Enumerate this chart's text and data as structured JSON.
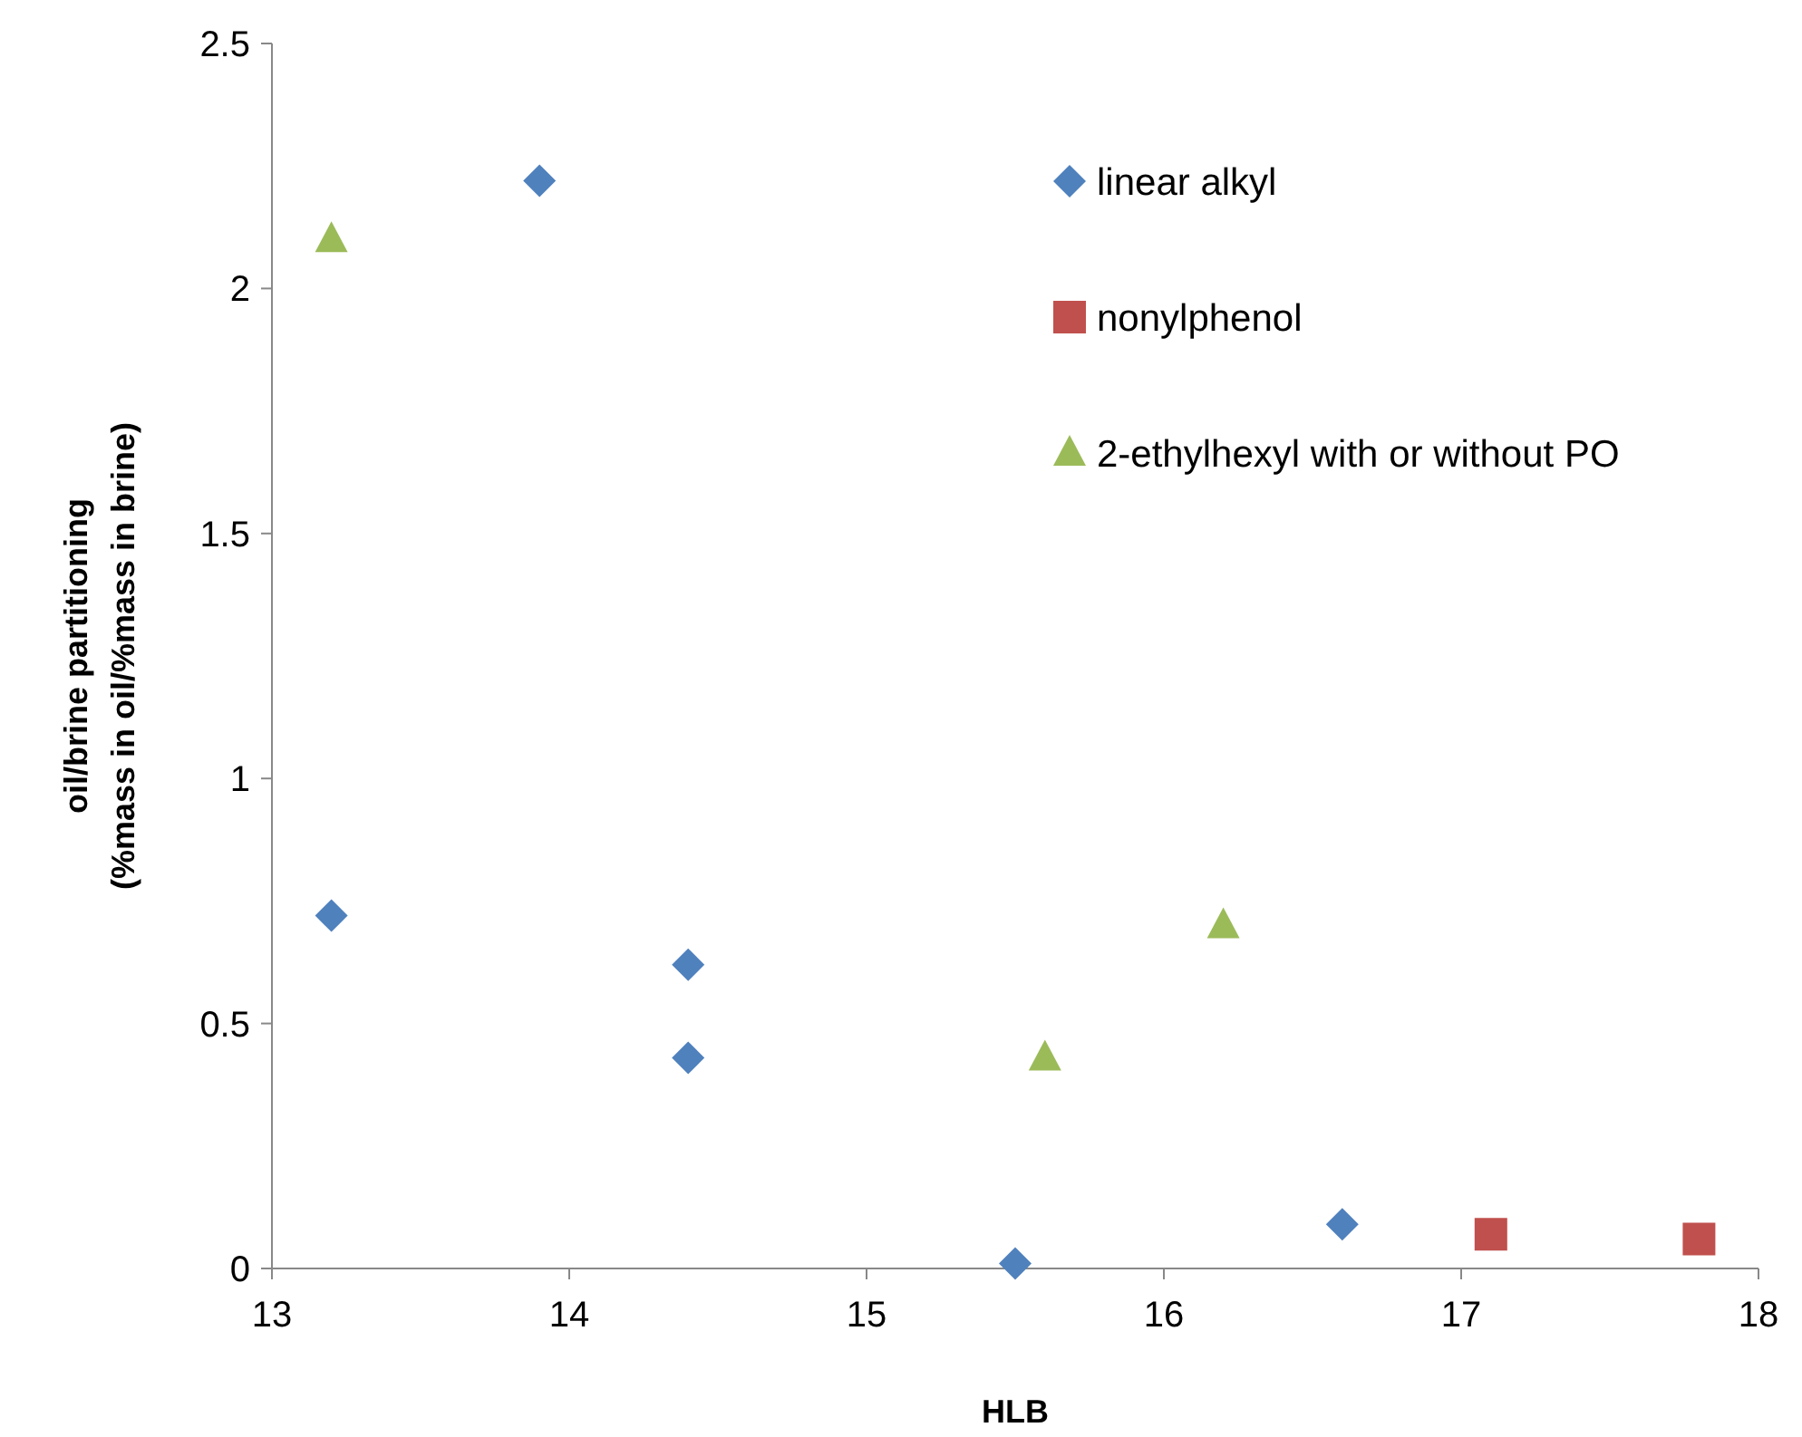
{
  "chart_data": {
    "type": "scatter",
    "xlabel": "HLB",
    "ylabel": "oil/brine partitioning\n(%mass in oil/%mass in brine)",
    "xlim": [
      13,
      18
    ],
    "xticks": [
      13,
      14,
      15,
      16,
      17,
      18
    ],
    "ylim": [
      0,
      2.5
    ],
    "yticks": [
      0,
      0.5,
      1,
      1.5,
      2,
      2.5
    ],
    "grid": false,
    "legend": "top right",
    "series": [
      {
        "name": "linear alkyl",
        "color": "#4f81bd",
        "marker": "diamond",
        "x": [
          13.2,
          13.9,
          14.4,
          14.4,
          15.5,
          16.6
        ],
        "values": [
          0.72,
          2.22,
          0.62,
          0.43,
          0.01,
          0.09
        ]
      },
      {
        "name": "nonylphenol",
        "color": "#c0504d",
        "marker": "square",
        "x": [
          17.1,
          17.8
        ],
        "values": [
          0.07,
          0.06
        ]
      },
      {
        "name": "2-ethylhexyl with or without PO",
        "color": "#9bbb59",
        "marker": "triangle",
        "x": [
          13.2,
          15.6,
          16.2
        ],
        "values": [
          2.1,
          0.43,
          0.7
        ]
      }
    ]
  }
}
